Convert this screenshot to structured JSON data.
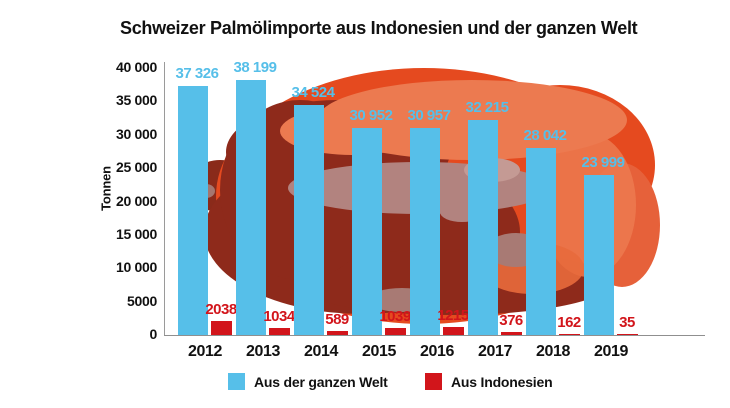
{
  "title": "Schweizer Palmölimporte aus Indonesien und der ganzen Welt",
  "chart_data": {
    "type": "bar",
    "categories": [
      "2012",
      "2013",
      "2014",
      "2015",
      "2016",
      "2017",
      "2018",
      "2019"
    ],
    "series": [
      {
        "name": "Aus der ganzen Welt",
        "color": "#56bfe9",
        "values": [
          37326,
          38199,
          34524,
          30952,
          30957,
          32215,
          28042,
          23999
        ],
        "labels": [
          "37 326",
          "38 199",
          "34 524",
          "30 952",
          "30 957",
          "32 215",
          "28 042",
          "23 999"
        ]
      },
      {
        "name": "Aus Indonesien",
        "color": "#d2151b",
        "values": [
          2038,
          1034,
          589,
          1039,
          1215,
          376,
          162,
          35
        ],
        "labels": [
          "2038",
          "1034",
          "589",
          "1039",
          "1215",
          "376",
          "162",
          "35"
        ]
      }
    ],
    "ylabel": "Tonnen",
    "ylim": [
      0,
      40000
    ],
    "yticks": [
      {
        "value": 0,
        "label": "0"
      },
      {
        "value": 5000,
        "label": "5000"
      },
      {
        "value": 10000,
        "label": "10 000"
      },
      {
        "value": 15000,
        "label": "15 000"
      },
      {
        "value": 20000,
        "label": "20 000"
      },
      {
        "value": 25000,
        "label": "25 000"
      },
      {
        "value": 30000,
        "label": "30 000"
      },
      {
        "value": 35000,
        "label": "35 000"
      },
      {
        "value": 40000,
        "label": "40 000"
      }
    ],
    "grid": false,
    "legend_position": "bottom"
  },
  "legend": {
    "items": [
      {
        "label": "Aus der ganzen Welt",
        "color": "#56bfe9"
      },
      {
        "label": "Aus Indonesien",
        "color": "#d2151b"
      }
    ]
  },
  "background_illustration": {
    "name": "palm-oil-fruit",
    "colors": {
      "body": "#e54a1f",
      "highlight": "#ec7a50",
      "dark": "#8e2a1b",
      "mauve": "#b2837f",
      "stem": "#8a2a1a"
    }
  }
}
